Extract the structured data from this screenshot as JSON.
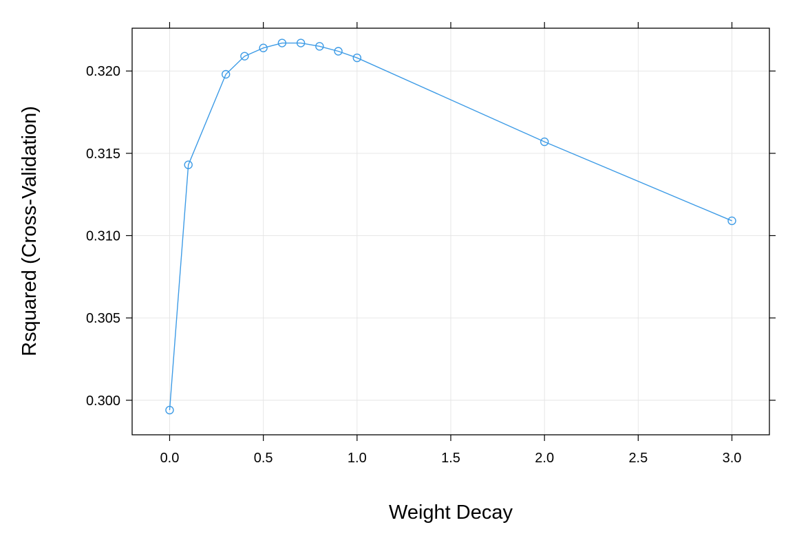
{
  "chart_data": {
    "type": "line",
    "title": "",
    "xlabel": "Weight Decay",
    "ylabel": "Rsquared (Cross-Validation)",
    "xlim": [
      -0.2,
      3.2
    ],
    "ylim": [
      0.2979,
      0.3226
    ],
    "x_ticks": [
      0.0,
      0.5,
      1.0,
      1.5,
      2.0,
      2.5,
      3.0
    ],
    "x_tick_labels": [
      "0.0",
      "0.5",
      "1.0",
      "1.5",
      "2.0",
      "2.5",
      "3.0"
    ],
    "y_ticks": [
      0.3,
      0.305,
      0.31,
      0.315,
      0.32
    ],
    "y_tick_labels": [
      "0.300",
      "0.305",
      "0.310",
      "0.315",
      "0.320"
    ],
    "grid": true,
    "series": [
      {
        "color": "#3d9be6",
        "marker": "open-circle",
        "points": [
          {
            "x": 0.0,
            "y": 0.2994
          },
          {
            "x": 0.1,
            "y": 0.3143
          },
          {
            "x": 0.3,
            "y": 0.3198
          },
          {
            "x": 0.4,
            "y": 0.3209
          },
          {
            "x": 0.5,
            "y": 0.3214
          },
          {
            "x": 0.6,
            "y": 0.3217
          },
          {
            "x": 0.7,
            "y": 0.3217
          },
          {
            "x": 0.8,
            "y": 0.3215
          },
          {
            "x": 0.9,
            "y": 0.3212
          },
          {
            "x": 1.0,
            "y": 0.3208
          },
          {
            "x": 2.0,
            "y": 0.3157
          },
          {
            "x": 3.0,
            "y": 0.3109
          }
        ]
      }
    ]
  }
}
